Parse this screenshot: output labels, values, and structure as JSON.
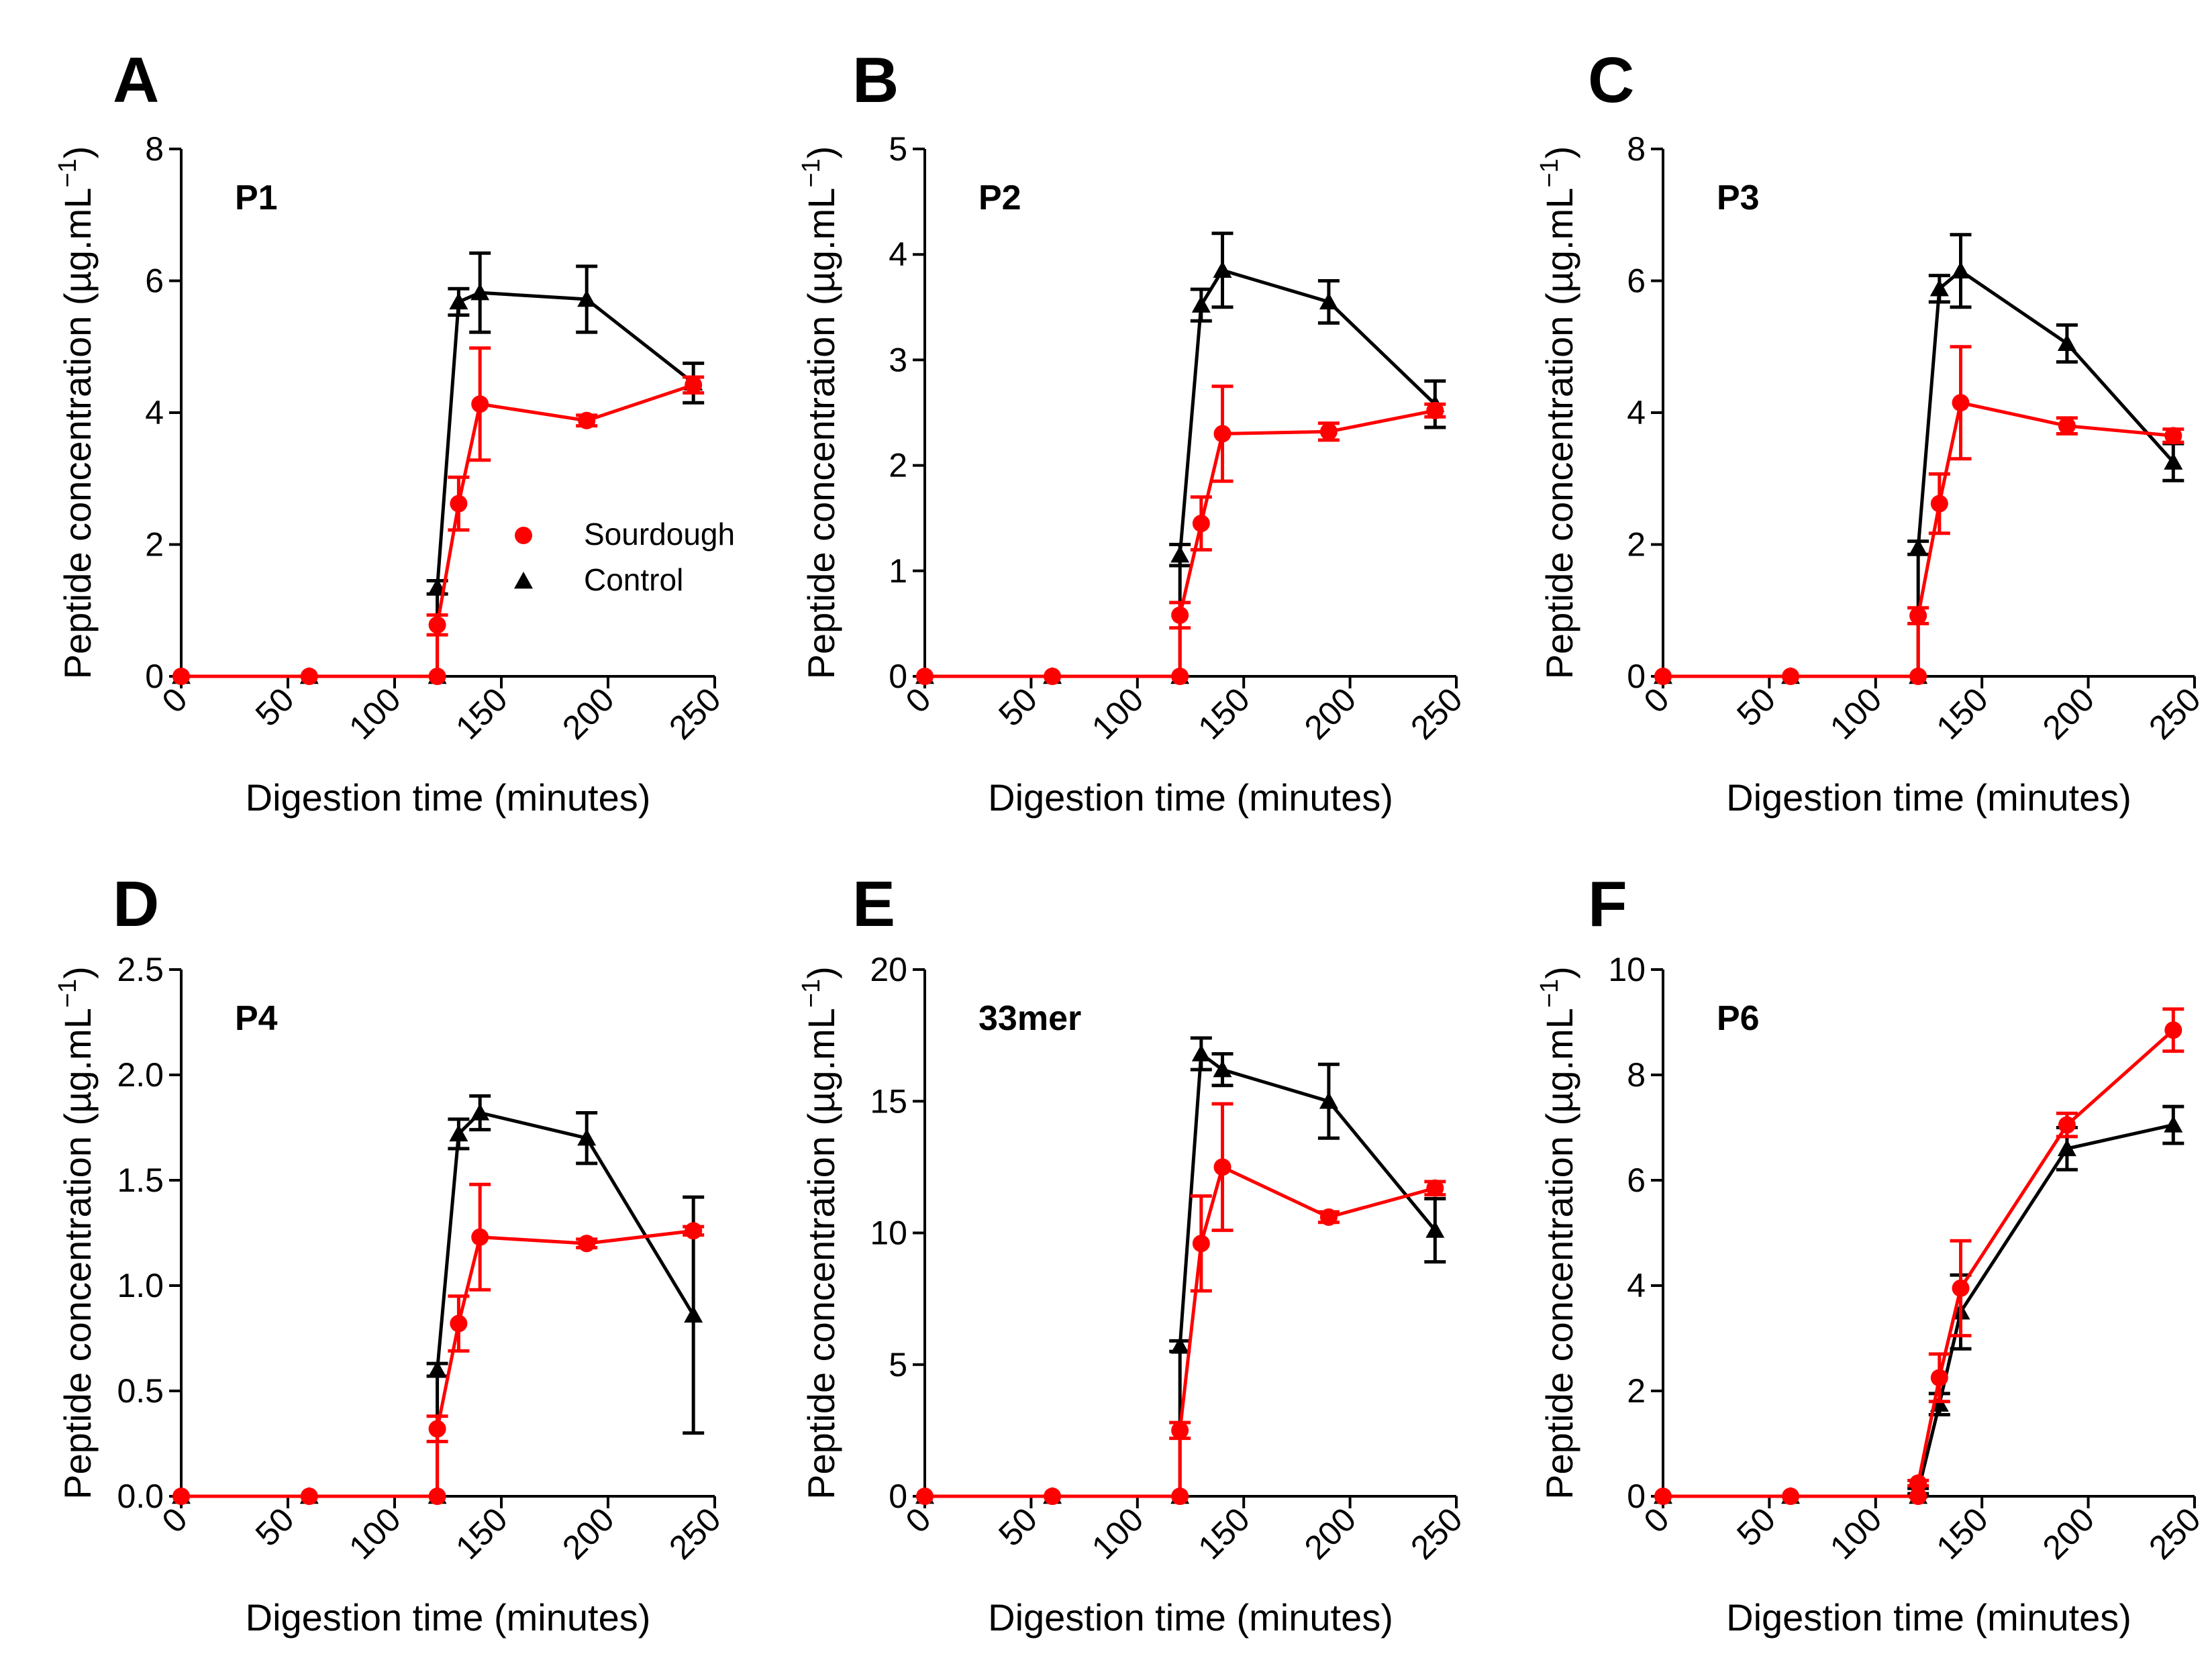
{
  "colors": {
    "sourdough": "#ff0000",
    "control": "#000000"
  },
  "legend": [
    {
      "label": "Sourdough",
      "marker": "circle",
      "color": "#ff0000"
    },
    {
      "label": "Control",
      "marker": "triangle",
      "color": "#000000"
    }
  ],
  "chart_data": [
    {
      "type": "line",
      "panel": "A",
      "name": "P1",
      "xlabel": "Digestion time (minutes)",
      "ylabel": "Peptide concentration (µg.mL",
      "ylabel_unit_sup": "−1",
      "ylabel_close": ")",
      "xlim": [
        0,
        250
      ],
      "ylim": [
        0,
        8
      ],
      "xticks": [
        0,
        50,
        100,
        150,
        200,
        250
      ],
      "yticks": [
        0,
        2,
        4,
        6,
        8
      ],
      "series": [
        {
          "name": "Sourdough",
          "x": [
            0,
            60,
            120,
            120,
            130,
            140,
            190,
            240
          ],
          "y": [
            0,
            0,
            0,
            0.78,
            2.62,
            4.13,
            3.88,
            4.42
          ],
          "err": [
            0,
            0,
            0,
            0.15,
            0.4,
            0.85,
            0.08,
            0.12
          ]
        },
        {
          "name": "Control",
          "x": [
            0,
            60,
            120,
            120,
            130,
            140,
            190,
            240
          ],
          "y": [
            0,
            0,
            0,
            1.35,
            5.68,
            5.82,
            5.72,
            4.45
          ],
          "err": [
            0,
            0,
            0,
            0.1,
            0.2,
            0.6,
            0.5,
            0.3
          ]
        }
      ]
    },
    {
      "type": "line",
      "panel": "B",
      "name": "P2",
      "xlabel": "Digestion time (minutes)",
      "ylabel": "Peptide concentration (µg.mL",
      "ylabel_unit_sup": "−1",
      "ylabel_close": ")",
      "xlim": [
        0,
        250
      ],
      "ylim": [
        0,
        5
      ],
      "xticks": [
        0,
        50,
        100,
        150,
        200,
        250
      ],
      "yticks": [
        0,
        1,
        2,
        3,
        4,
        5
      ],
      "series": [
        {
          "name": "Sourdough",
          "x": [
            0,
            60,
            120,
            120,
            130,
            140,
            190,
            240
          ],
          "y": [
            0,
            0,
            0,
            0.58,
            1.45,
            2.3,
            2.32,
            2.52
          ],
          "err": [
            0,
            0,
            0,
            0.12,
            0.25,
            0.45,
            0.08,
            0.06
          ]
        },
        {
          "name": "Control",
          "x": [
            0,
            60,
            120,
            120,
            130,
            140,
            190,
            240
          ],
          "y": [
            0,
            0,
            0,
            1.15,
            3.52,
            3.85,
            3.55,
            2.58
          ],
          "err": [
            0,
            0,
            0,
            0.1,
            0.15,
            0.35,
            0.2,
            0.22
          ]
        }
      ]
    },
    {
      "type": "line",
      "panel": "C",
      "name": "P3",
      "xlabel": "Digestion time (minutes)",
      "ylabel": "Peptide concentration (µg.mL",
      "ylabel_unit_sup": "−1",
      "ylabel_close": ")",
      "xlim": [
        0,
        250
      ],
      "ylim": [
        0,
        8
      ],
      "xticks": [
        0,
        50,
        100,
        150,
        200,
        250
      ],
      "yticks": [
        0,
        2,
        4,
        6,
        8
      ],
      "series": [
        {
          "name": "Sourdough",
          "x": [
            0,
            60,
            120,
            120,
            130,
            140,
            190,
            240
          ],
          "y": [
            0,
            0,
            0,
            0.92,
            2.62,
            4.15,
            3.8,
            3.65
          ],
          "err": [
            0,
            0,
            0,
            0.12,
            0.45,
            0.85,
            0.12,
            0.1
          ]
        },
        {
          "name": "Control",
          "x": [
            0,
            60,
            120,
            120,
            130,
            140,
            190,
            240
          ],
          "y": [
            0,
            0,
            0,
            1.95,
            5.88,
            6.15,
            5.05,
            3.25
          ],
          "err": [
            0,
            0,
            0,
            0.1,
            0.2,
            0.55,
            0.28,
            0.28
          ]
        }
      ]
    },
    {
      "type": "line",
      "panel": "D",
      "name": "P4",
      "xlabel": "Digestion time (minutes)",
      "ylabel": "Peptide concentration (µg.mL",
      "ylabel_unit_sup": "−1",
      "ylabel_close": ")",
      "xlim": [
        0,
        250
      ],
      "ylim": [
        0,
        2.5
      ],
      "xticks": [
        0,
        50,
        100,
        150,
        200,
        250
      ],
      "yticks": [
        0.0,
        0.5,
        1.0,
        1.5,
        2.0,
        2.5
      ],
      "ytick_labels": [
        "0.0",
        "0.5",
        "1.0",
        "1.5",
        "2.0",
        "2.5"
      ],
      "series": [
        {
          "name": "Sourdough",
          "x": [
            0,
            60,
            120,
            120,
            130,
            140,
            190,
            240
          ],
          "y": [
            0,
            0,
            0,
            0.32,
            0.82,
            1.23,
            1.2,
            1.26
          ],
          "err": [
            0,
            0,
            0,
            0.06,
            0.13,
            0.25,
            0.02,
            0.02
          ]
        },
        {
          "name": "Control",
          "x": [
            0,
            60,
            120,
            120,
            130,
            140,
            190,
            240
          ],
          "y": [
            0,
            0,
            0,
            0.6,
            1.72,
            1.82,
            1.7,
            0.86
          ],
          "err": [
            0,
            0,
            0,
            0.03,
            0.07,
            0.08,
            0.12,
            0.56
          ]
        }
      ]
    },
    {
      "type": "line",
      "panel": "E",
      "name": "33mer",
      "xlabel": "Digestion time (minutes)",
      "ylabel": "Peptide concentration (µg.mL",
      "ylabel_unit_sup": "−1",
      "ylabel_close": ")",
      "xlim": [
        0,
        250
      ],
      "ylim": [
        0,
        20
      ],
      "xticks": [
        0,
        50,
        100,
        150,
        200,
        250
      ],
      "yticks": [
        0,
        5,
        10,
        15,
        20
      ],
      "series": [
        {
          "name": "Sourdough",
          "x": [
            0,
            60,
            120,
            120,
            130,
            140,
            190,
            240
          ],
          "y": [
            0,
            0,
            0,
            2.5,
            9.6,
            12.5,
            10.6,
            11.7
          ],
          "err": [
            0,
            0,
            0,
            0.3,
            1.8,
            2.4,
            0.2,
            0.25
          ]
        },
        {
          "name": "Control",
          "x": [
            0,
            60,
            120,
            120,
            130,
            140,
            190,
            240
          ],
          "y": [
            0,
            0,
            0,
            5.7,
            16.8,
            16.2,
            15.0,
            10.1
          ],
          "err": [
            0,
            0,
            0,
            0.2,
            0.6,
            0.6,
            1.4,
            1.2
          ]
        }
      ]
    },
    {
      "type": "line",
      "panel": "F",
      "name": "P6",
      "xlabel": "Digestion time (minutes)",
      "ylabel": "Peptide concentration (µg.mL",
      "ylabel_unit_sup": "−1",
      "ylabel_close": ")",
      "xlim": [
        0,
        250
      ],
      "ylim": [
        0,
        10
      ],
      "xticks": [
        0,
        50,
        100,
        150,
        200,
        250
      ],
      "yticks": [
        0,
        2,
        4,
        6,
        8,
        10
      ],
      "series": [
        {
          "name": "Sourdough",
          "x": [
            0,
            60,
            120,
            120,
            130,
            140,
            190,
            240
          ],
          "y": [
            0,
            0,
            0,
            0.25,
            2.25,
            3.95,
            7.05,
            8.85
          ],
          "err": [
            0,
            0,
            0,
            0.05,
            0.45,
            0.9,
            0.22,
            0.4
          ]
        },
        {
          "name": "Control",
          "x": [
            0,
            60,
            120,
            120,
            130,
            140,
            190,
            240
          ],
          "y": [
            0,
            0,
            0,
            0.1,
            1.75,
            3.5,
            6.6,
            7.05
          ],
          "err": [
            0,
            0,
            0,
            0.05,
            0.2,
            0.7,
            0.4,
            0.35
          ]
        }
      ]
    }
  ]
}
